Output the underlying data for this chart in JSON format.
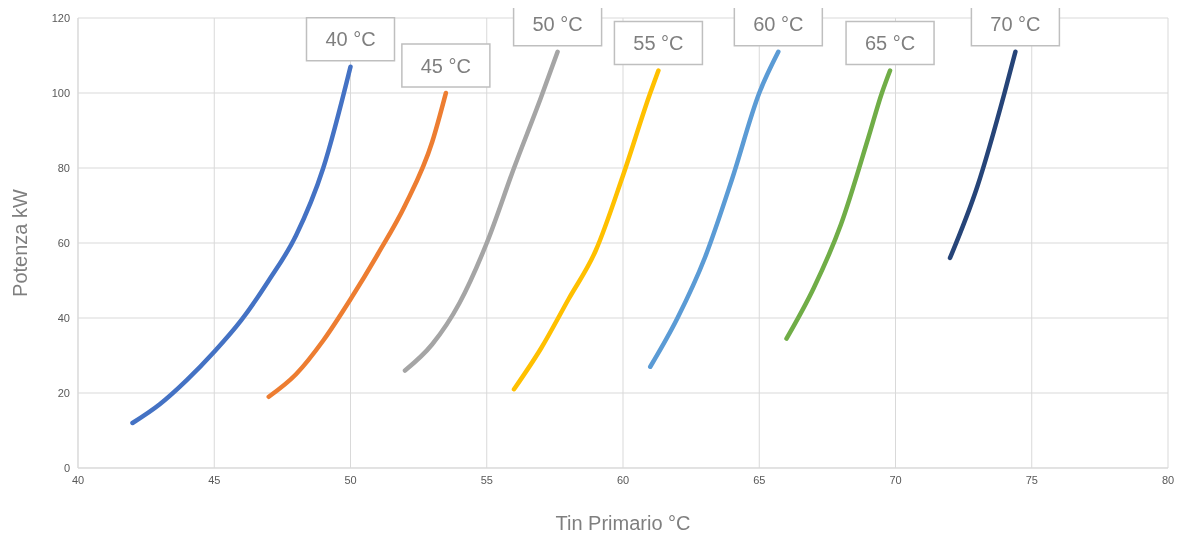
{
  "chart_data": {
    "type": "line",
    "xlabel": "Tin Primario °C",
    "ylabel": "Potenza  kW",
    "xlim": [
      40,
      80
    ],
    "xticks": [
      40,
      45,
      50,
      55,
      60,
      65,
      70,
      75,
      80
    ],
    "ylim": [
      0,
      120
    ],
    "yticks": [
      0,
      20,
      40,
      60,
      80,
      100,
      120
    ],
    "grid": true,
    "legend": false,
    "marker": "none",
    "line_style": "solid",
    "series": [
      {
        "name": "40 °C",
        "color": "#4472c4",
        "x": [
          42,
          43,
          44,
          45,
          46,
          47,
          48,
          49,
          50
        ],
        "values": [
          12,
          17,
          23.5,
          31,
          39.5,
          50,
          62,
          80,
          107
        ]
      },
      {
        "name": "45 °C",
        "color": "#ed7d31",
        "x": [
          47,
          48,
          49,
          50,
          51,
          52,
          53,
          53.5
        ],
        "values": [
          19,
          25,
          34,
          45,
          57,
          70,
          87,
          100
        ]
      },
      {
        "name": "50 °C",
        "color": "#a5a5a5",
        "x": [
          52,
          53,
          54,
          55,
          56,
          57,
          57.6
        ],
        "values": [
          26,
          33,
          44,
          60,
          80,
          99,
          111
        ]
      },
      {
        "name": "55 °C",
        "color": "#ffc000",
        "x": [
          56,
          57,
          58,
          59,
          60,
          61,
          61.3
        ],
        "values": [
          21,
          32,
          45,
          58,
          78,
          100,
          106
        ]
      },
      {
        "name": "60 °C",
        "color": "#5b9bd5",
        "x": [
          61,
          62,
          63,
          64,
          65,
          65.7
        ],
        "values": [
          27,
          40,
          56,
          77,
          100,
          111
        ]
      },
      {
        "name": "65 °C",
        "color": "#70ad47",
        "x": [
          66,
          67,
          68,
          69,
          69.5,
          69.8
        ],
        "values": [
          34.5,
          48,
          65,
          88,
          100,
          106
        ]
      },
      {
        "name": "70 °C",
        "color": "#264478",
        "x": [
          72,
          73,
          74,
          74.4
        ],
        "values": [
          56,
          75,
          100,
          111
        ]
      }
    ]
  }
}
